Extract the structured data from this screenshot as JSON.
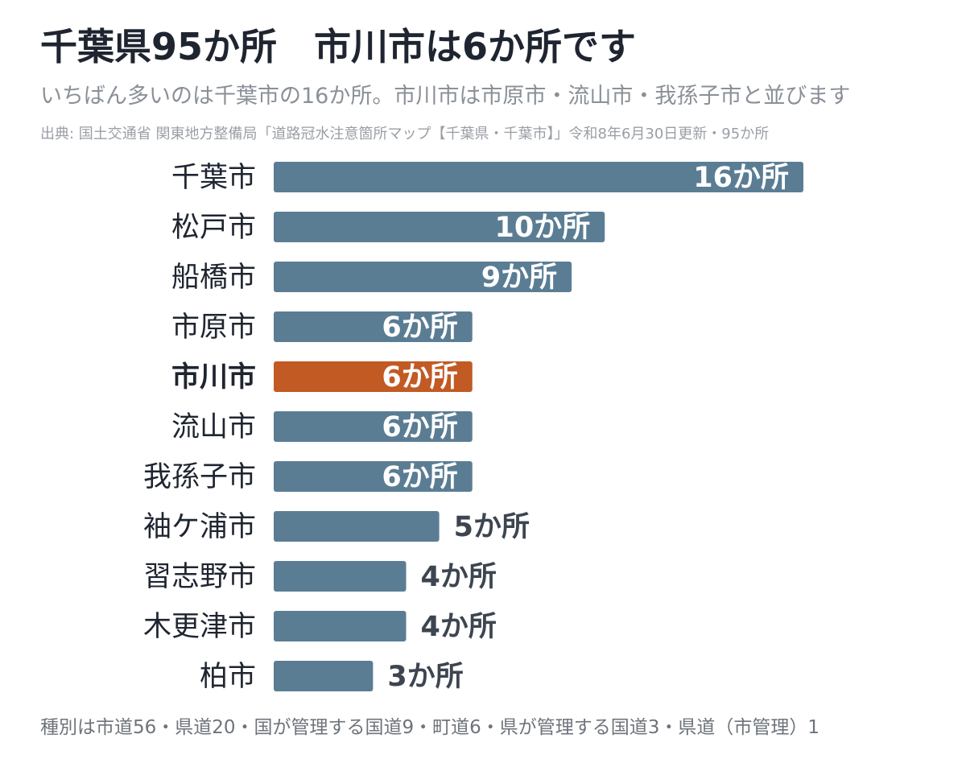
{
  "title": "千葉県95か所　市川市は6か所です",
  "subtitle": "いちばん多いのは千葉市の16か所。市川市は市原市・流山市・我孫子市と並びます",
  "source": "出典: 国土交通省 関東地方整備局「道路冠水注意箇所マップ【千葉県・千葉市】」令和8年6月30日更新・95か所",
  "footnote": "種別は市道56・県道20・国が管理する国道9・町道6・県が管理する国道3・県道（市管理）1",
  "colors": {
    "bar": "#5b7d94",
    "highlight": "#c25a24",
    "label": "#1f2530",
    "value_inside": "#ffffff",
    "value_outside": "#3c4550"
  },
  "chart_data": {
    "type": "bar",
    "orientation": "horizontal",
    "unit": "か所",
    "categories": [
      "千葉市",
      "松戸市",
      "船橋市",
      "市原市",
      "市川市",
      "流山市",
      "我孫子市",
      "袖ケ浦市",
      "習志野市",
      "木更津市",
      "柏市"
    ],
    "values": [
      16,
      10,
      9,
      6,
      6,
      6,
      6,
      5,
      4,
      4,
      3
    ],
    "value_labels": [
      "16か所",
      "10か所",
      "9か所",
      "6か所",
      "6か所",
      "6か所",
      "6か所",
      "5か所",
      "4か所",
      "4か所",
      "3か所"
    ],
    "highlight": "市川市",
    "xlim": [
      0,
      16
    ],
    "grid": false,
    "legend": "none"
  }
}
